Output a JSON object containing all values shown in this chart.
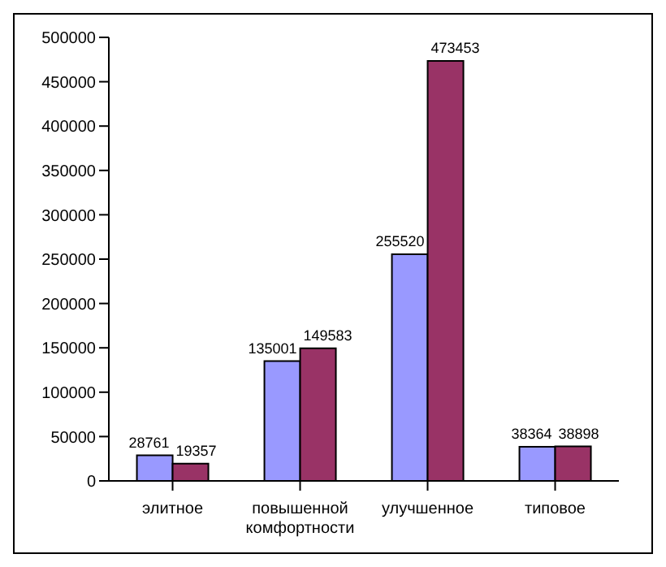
{
  "chart_data": {
    "type": "bar",
    "categories": [
      "элитное",
      "повышенной комфортности",
      "улучшенное",
      "типовое"
    ],
    "series": [
      {
        "color": "#9999ff",
        "values": [
          28761,
          135001,
          255520,
          38364
        ]
      },
      {
        "color": "#993366",
        "values": [
          19357,
          149583,
          473453,
          38898
        ]
      }
    ],
    "ylim": [
      0,
      500000
    ],
    "yticks": [
      0,
      50000,
      100000,
      150000,
      200000,
      250000,
      300000,
      350000,
      400000,
      450000,
      500000
    ],
    "grid": false,
    "legend": false,
    "data_labels": true
  }
}
